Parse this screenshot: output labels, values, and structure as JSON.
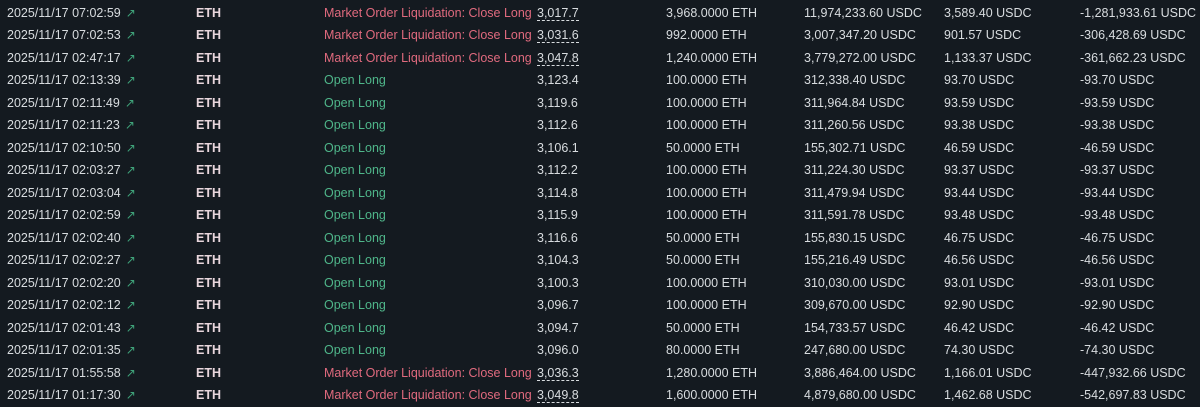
{
  "colors": {
    "liquidation": "#e06a7e",
    "open": "#4fb68a",
    "background": "#141a20"
  },
  "icons": {
    "time_link": "external-link-icon"
  },
  "trades": [
    {
      "time": "2025/11/17 07:02:59",
      "coin": "ETH",
      "direction": "Market Order Liquidation: Close Long",
      "type": "liq",
      "price": "3,017.7",
      "size": "3,968.0000 ETH",
      "value": "11,974,233.60 USDC",
      "fee": "3,589.40 USDC",
      "pnl": "-1,281,933.61 USDC"
    },
    {
      "time": "2025/11/17 07:02:53",
      "coin": "ETH",
      "direction": "Market Order Liquidation: Close Long",
      "type": "liq",
      "price": "3,031.6",
      "size": "992.0000 ETH",
      "value": "3,007,347.20 USDC",
      "fee": "901.57 USDC",
      "pnl": "-306,428.69 USDC"
    },
    {
      "time": "2025/11/17 02:47:17",
      "coin": "ETH",
      "direction": "Market Order Liquidation: Close Long",
      "type": "liq",
      "price": "3,047.8",
      "size": "1,240.0000 ETH",
      "value": "3,779,272.00 USDC",
      "fee": "1,133.37 USDC",
      "pnl": "-361,662.23 USDC"
    },
    {
      "time": "2025/11/17 02:13:39",
      "coin": "ETH",
      "direction": "Open Long",
      "type": "open",
      "price": "3,123.4",
      "size": "100.0000 ETH",
      "value": "312,338.40 USDC",
      "fee": "93.70 USDC",
      "pnl": "-93.70 USDC"
    },
    {
      "time": "2025/11/17 02:11:49",
      "coin": "ETH",
      "direction": "Open Long",
      "type": "open",
      "price": "3,119.6",
      "size": "100.0000 ETH",
      "value": "311,964.84 USDC",
      "fee": "93.59 USDC",
      "pnl": "-93.59 USDC"
    },
    {
      "time": "2025/11/17 02:11:23",
      "coin": "ETH",
      "direction": "Open Long",
      "type": "open",
      "price": "3,112.6",
      "size": "100.0000 ETH",
      "value": "311,260.56 USDC",
      "fee": "93.38 USDC",
      "pnl": "-93.38 USDC"
    },
    {
      "time": "2025/11/17 02:10:50",
      "coin": "ETH",
      "direction": "Open Long",
      "type": "open",
      "price": "3,106.1",
      "size": "50.0000 ETH",
      "value": "155,302.71 USDC",
      "fee": "46.59 USDC",
      "pnl": "-46.59 USDC"
    },
    {
      "time": "2025/11/17 02:03:27",
      "coin": "ETH",
      "direction": "Open Long",
      "type": "open",
      "price": "3,112.2",
      "size": "100.0000 ETH",
      "value": "311,224.30 USDC",
      "fee": "93.37 USDC",
      "pnl": "-93.37 USDC"
    },
    {
      "time": "2025/11/17 02:03:04",
      "coin": "ETH",
      "direction": "Open Long",
      "type": "open",
      "price": "3,114.8",
      "size": "100.0000 ETH",
      "value": "311,479.94 USDC",
      "fee": "93.44 USDC",
      "pnl": "-93.44 USDC"
    },
    {
      "time": "2025/11/17 02:02:59",
      "coin": "ETH",
      "direction": "Open Long",
      "type": "open",
      "price": "3,115.9",
      "size": "100.0000 ETH",
      "value": "311,591.78 USDC",
      "fee": "93.48 USDC",
      "pnl": "-93.48 USDC"
    },
    {
      "time": "2025/11/17 02:02:40",
      "coin": "ETH",
      "direction": "Open Long",
      "type": "open",
      "price": "3,116.6",
      "size": "50.0000 ETH",
      "value": "155,830.15 USDC",
      "fee": "46.75 USDC",
      "pnl": "-46.75 USDC"
    },
    {
      "time": "2025/11/17 02:02:27",
      "coin": "ETH",
      "direction": "Open Long",
      "type": "open",
      "price": "3,104.3",
      "size": "50.0000 ETH",
      "value": "155,216.49 USDC",
      "fee": "46.56 USDC",
      "pnl": "-46.56 USDC"
    },
    {
      "time": "2025/11/17 02:02:20",
      "coin": "ETH",
      "direction": "Open Long",
      "type": "open",
      "price": "3,100.3",
      "size": "100.0000 ETH",
      "value": "310,030.00 USDC",
      "fee": "93.01 USDC",
      "pnl": "-93.01 USDC"
    },
    {
      "time": "2025/11/17 02:02:12",
      "coin": "ETH",
      "direction": "Open Long",
      "type": "open",
      "price": "3,096.7",
      "size": "100.0000 ETH",
      "value": "309,670.00 USDC",
      "fee": "92.90 USDC",
      "pnl": "-92.90 USDC"
    },
    {
      "time": "2025/11/17 02:01:43",
      "coin": "ETH",
      "direction": "Open Long",
      "type": "open",
      "price": "3,094.7",
      "size": "50.0000 ETH",
      "value": "154,733.57 USDC",
      "fee": "46.42 USDC",
      "pnl": "-46.42 USDC"
    },
    {
      "time": "2025/11/17 02:01:35",
      "coin": "ETH",
      "direction": "Open Long",
      "type": "open",
      "price": "3,096.0",
      "size": "80.0000 ETH",
      "value": "247,680.00 USDC",
      "fee": "74.30 USDC",
      "pnl": "-74.30 USDC"
    },
    {
      "time": "2025/11/17 01:55:58",
      "coin": "ETH",
      "direction": "Market Order Liquidation: Close Long",
      "type": "liq",
      "price": "3,036.3",
      "size": "1,280.0000 ETH",
      "value": "3,886,464.00 USDC",
      "fee": "1,166.01 USDC",
      "pnl": "-447,932.66 USDC"
    },
    {
      "time": "2025/11/17 01:17:30",
      "coin": "ETH",
      "direction": "Market Order Liquidation: Close Long",
      "type": "liq",
      "price": "3,049.8",
      "size": "1,600.0000 ETH",
      "value": "4,879,680.00 USDC",
      "fee": "1,462.68 USDC",
      "pnl": "-542,697.83 USDC"
    }
  ]
}
